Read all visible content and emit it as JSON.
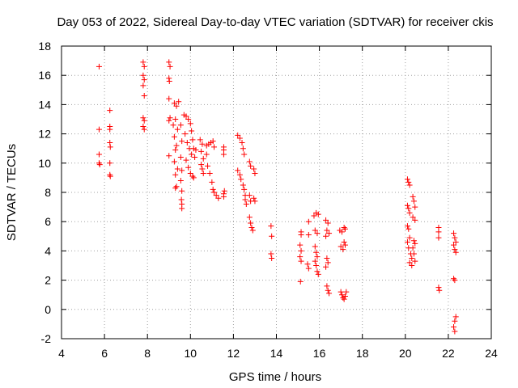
{
  "chart_data": {
    "type": "scatter",
    "title": "Day 053 of 2022, Sidereal Day-to-day VTEC variation (SDTVAR) for receiver ckis",
    "xlabel": "GPS time / hours",
    "ylabel": "SDTVAR / TECUs",
    "xlim": [
      4,
      24
    ],
    "ylim": [
      -2,
      18
    ],
    "xticks": [
      "4",
      "6",
      "8",
      "10",
      "12",
      "14",
      "16",
      "18",
      "20",
      "22",
      "24"
    ],
    "yticks": [
      "-2",
      "0",
      "2",
      "4",
      "6",
      "8",
      "10",
      "12",
      "14",
      "16",
      "18"
    ],
    "grid": true,
    "marker": "+",
    "series": [
      {
        "name": "SDTVAR",
        "color": "#ff0000",
        "points": [
          [
            5.75,
            16.6
          ],
          [
            5.75,
            12.3
          ],
          [
            5.75,
            10.6
          ],
          [
            5.75,
            10.0
          ],
          [
            5.78,
            9.9
          ],
          [
            6.25,
            13.6
          ],
          [
            6.25,
            12.5
          ],
          [
            6.25,
            12.3
          ],
          [
            6.25,
            11.4
          ],
          [
            6.27,
            11.1
          ],
          [
            6.25,
            10.0
          ],
          [
            6.25,
            9.2
          ],
          [
            6.27,
            9.1
          ],
          [
            7.8,
            16.9
          ],
          [
            7.85,
            16.6
          ],
          [
            7.8,
            16.0
          ],
          [
            7.85,
            15.7
          ],
          [
            7.8,
            15.3
          ],
          [
            7.85,
            14.6
          ],
          [
            7.8,
            13.1
          ],
          [
            7.85,
            12.9
          ],
          [
            7.8,
            12.5
          ],
          [
            7.85,
            12.3
          ],
          [
            9.0,
            16.9
          ],
          [
            9.05,
            16.6
          ],
          [
            9.0,
            15.8
          ],
          [
            9.02,
            15.6
          ],
          [
            9.0,
            14.4
          ],
          [
            9.05,
            13.1
          ],
          [
            9.0,
            12.9
          ],
          [
            9.0,
            10.5
          ],
          [
            9.25,
            14.1
          ],
          [
            9.35,
            13.9
          ],
          [
            9.45,
            14.2
          ],
          [
            9.3,
            13.0
          ],
          [
            9.2,
            12.6
          ],
          [
            9.4,
            12.3
          ],
          [
            9.25,
            11.8
          ],
          [
            9.35,
            11.2
          ],
          [
            9.3,
            10.9
          ],
          [
            9.25,
            10.1
          ],
          [
            9.4,
            9.6
          ],
          [
            9.3,
            9.2
          ],
          [
            9.35,
            8.4
          ],
          [
            9.3,
            8.3
          ],
          [
            9.55,
            12.6
          ],
          [
            9.6,
            11.5
          ],
          [
            9.55,
            10.4
          ],
          [
            9.6,
            9.5
          ],
          [
            9.55,
            8.8
          ],
          [
            9.6,
            8.1
          ],
          [
            9.58,
            7.5
          ],
          [
            9.6,
            7.2
          ],
          [
            9.6,
            6.9
          ],
          [
            9.7,
            13.3
          ],
          [
            9.8,
            13.2
          ],
          [
            9.9,
            13.0
          ],
          [
            10.0,
            12.7
          ],
          [
            10.05,
            12.2
          ],
          [
            10.1,
            11.6
          ],
          [
            9.75,
            12.0
          ],
          [
            9.85,
            11.4
          ],
          [
            9.95,
            11.0
          ],
          [
            10.05,
            10.6
          ],
          [
            9.8,
            10.2
          ],
          [
            9.9,
            9.7
          ],
          [
            10.0,
            9.3
          ],
          [
            10.1,
            9.1
          ],
          [
            10.15,
            9.0
          ],
          [
            10.15,
            11.0
          ],
          [
            10.25,
            10.9
          ],
          [
            10.2,
            10.4
          ],
          [
            10.45,
            11.6
          ],
          [
            10.55,
            11.3
          ],
          [
            10.5,
            10.8
          ],
          [
            10.6,
            10.3
          ],
          [
            10.5,
            9.9
          ],
          [
            10.55,
            9.6
          ],
          [
            10.6,
            9.3
          ],
          [
            10.75,
            11.2
          ],
          [
            10.85,
            11.3
          ],
          [
            10.95,
            11.4
          ],
          [
            11.05,
            11.5
          ],
          [
            11.1,
            11.1
          ],
          [
            10.75,
            10.6
          ],
          [
            10.8,
            9.8
          ],
          [
            10.9,
            9.3
          ],
          [
            11.0,
            8.7
          ],
          [
            11.05,
            8.2
          ],
          [
            11.1,
            8.0
          ],
          [
            11.2,
            7.8
          ],
          [
            11.3,
            7.6
          ],
          [
            11.55,
            11.1
          ],
          [
            11.55,
            10.9
          ],
          [
            11.55,
            10.6
          ],
          [
            11.58,
            8.1
          ],
          [
            11.55,
            7.9
          ],
          [
            11.55,
            7.7
          ],
          [
            12.2,
            11.9
          ],
          [
            12.3,
            11.7
          ],
          [
            12.4,
            11.4
          ],
          [
            12.45,
            11.0
          ],
          [
            12.5,
            10.6
          ],
          [
            12.2,
            9.5
          ],
          [
            12.3,
            9.2
          ],
          [
            12.35,
            8.9
          ],
          [
            12.45,
            8.5
          ],
          [
            12.5,
            8.2
          ],
          [
            12.55,
            7.8
          ],
          [
            12.55,
            7.5
          ],
          [
            12.6,
            7.2
          ],
          [
            12.75,
            10.1
          ],
          [
            12.8,
            9.8
          ],
          [
            12.75,
            7.8
          ],
          [
            12.8,
            7.4
          ],
          [
            12.75,
            6.3
          ],
          [
            12.8,
            5.9
          ],
          [
            12.85,
            5.6
          ],
          [
            12.9,
            5.4
          ],
          [
            12.95,
            9.6
          ],
          [
            13.0,
            9.3
          ],
          [
            12.95,
            7.6
          ],
          [
            13.0,
            7.4
          ],
          [
            13.75,
            5.7
          ],
          [
            13.78,
            5.0
          ],
          [
            13.75,
            3.8
          ],
          [
            13.78,
            3.5
          ],
          [
            15.15,
            5.3
          ],
          [
            15.15,
            5.1
          ],
          [
            15.1,
            4.4
          ],
          [
            15.15,
            4.0
          ],
          [
            15.1,
            3.6
          ],
          [
            15.15,
            3.3
          ],
          [
            15.12,
            1.9
          ],
          [
            15.5,
            6.0
          ],
          [
            15.5,
            5.1
          ],
          [
            15.45,
            3.1
          ],
          [
            15.5,
            2.8
          ],
          [
            15.75,
            6.4
          ],
          [
            15.85,
            6.6
          ],
          [
            15.95,
            6.5
          ],
          [
            15.8,
            5.4
          ],
          [
            15.9,
            5.2
          ],
          [
            15.8,
            4.3
          ],
          [
            15.85,
            3.9
          ],
          [
            15.9,
            3.6
          ],
          [
            15.8,
            3.3
          ],
          [
            15.85,
            3.0
          ],
          [
            15.9,
            2.6
          ],
          [
            15.95,
            2.4
          ],
          [
            16.3,
            6.1
          ],
          [
            16.4,
            5.9
          ],
          [
            16.35,
            5.4
          ],
          [
            16.45,
            5.2
          ],
          [
            16.3,
            5.0
          ],
          [
            16.35,
            3.5
          ],
          [
            16.4,
            3.2
          ],
          [
            16.3,
            2.9
          ],
          [
            16.35,
            1.6
          ],
          [
            16.4,
            1.3
          ],
          [
            16.45,
            1.1
          ],
          [
            16.95,
            5.4
          ],
          [
            17.05,
            5.3
          ],
          [
            17.15,
            5.6
          ],
          [
            17.2,
            5.5
          ],
          [
            17.0,
            4.3
          ],
          [
            17.1,
            4.1
          ],
          [
            17.15,
            4.6
          ],
          [
            17.2,
            4.4
          ],
          [
            17.0,
            1.2
          ],
          [
            17.05,
            1.0
          ],
          [
            17.1,
            0.8
          ],
          [
            17.15,
            0.7
          ],
          [
            17.2,
            0.9
          ],
          [
            17.25,
            1.2
          ],
          [
            20.1,
            8.9
          ],
          [
            20.15,
            8.7
          ],
          [
            20.2,
            8.5
          ],
          [
            20.1,
            7.1
          ],
          [
            20.15,
            6.9
          ],
          [
            20.2,
            6.6
          ],
          [
            20.1,
            5.7
          ],
          [
            20.15,
            5.5
          ],
          [
            20.2,
            4.9
          ],
          [
            20.1,
            4.6
          ],
          [
            20.15,
            4.2
          ],
          [
            20.25,
            3.8
          ],
          [
            20.3,
            3.5
          ],
          [
            20.2,
            3.2
          ],
          [
            20.3,
            3.0
          ],
          [
            20.35,
            7.7
          ],
          [
            20.4,
            7.4
          ],
          [
            20.45,
            7.0
          ],
          [
            20.35,
            6.3
          ],
          [
            20.45,
            6.1
          ],
          [
            20.4,
            4.7
          ],
          [
            20.45,
            4.5
          ],
          [
            20.35,
            4.2
          ],
          [
            20.4,
            3.8
          ],
          [
            20.45,
            3.3
          ],
          [
            21.55,
            5.6
          ],
          [
            21.55,
            5.3
          ],
          [
            21.55,
            4.9
          ],
          [
            21.55,
            1.5
          ],
          [
            21.58,
            1.3
          ],
          [
            22.25,
            5.2
          ],
          [
            22.3,
            4.9
          ],
          [
            22.35,
            4.6
          ],
          [
            22.25,
            4.4
          ],
          [
            22.3,
            4.1
          ],
          [
            22.35,
            3.9
          ],
          [
            22.25,
            2.1
          ],
          [
            22.3,
            2.0
          ],
          [
            22.35,
            -0.5
          ],
          [
            22.3,
            -0.8
          ],
          [
            22.25,
            -1.2
          ],
          [
            22.3,
            -1.5
          ]
        ]
      }
    ]
  }
}
